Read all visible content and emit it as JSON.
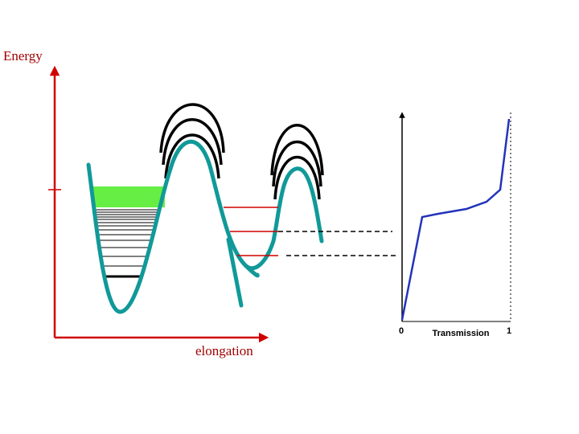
{
  "diagram": {
    "energy_axis_label": "Energy",
    "elongation_axis_label": "elongation",
    "transmission_plot": {
      "x_start_label": "0",
      "x_axis_label": "Transmission",
      "x_end_label": "1"
    }
  }
}
